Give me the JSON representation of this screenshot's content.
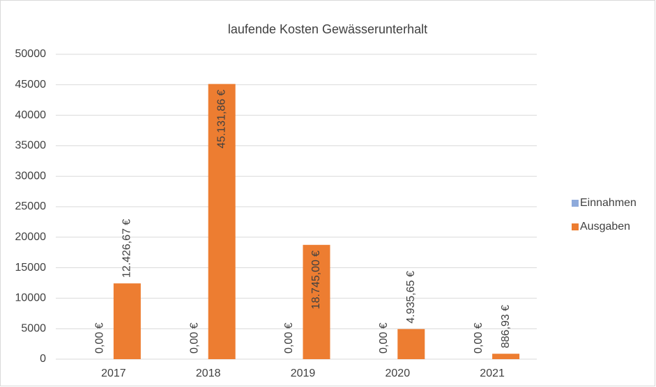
{
  "chart_data": {
    "type": "bar",
    "title": "laufende Kosten Gewässerunterhalt",
    "categories": [
      "2017",
      "2018",
      "2019",
      "2020",
      "2021"
    ],
    "series": [
      {
        "name": "Einnahmen",
        "color": "#8eaadb",
        "values": [
          0,
          0,
          0,
          0,
          0
        ],
        "value_labels": [
          "0,00 €",
          "0,00 €",
          "0,00 €",
          "0,00 €",
          "0,00 €"
        ]
      },
      {
        "name": "Ausgaben",
        "color": "#ed7d31",
        "values": [
          12426.67,
          45131.86,
          18745.0,
          4935.65,
          886.93
        ],
        "value_labels": [
          "12.426,67 €",
          "45.131,86 €",
          "18.745,00 €",
          "4.935,65 €",
          "886,93 €"
        ]
      }
    ],
    "ylim": [
      0,
      50000
    ],
    "yticks": [
      0,
      5000,
      10000,
      15000,
      20000,
      25000,
      30000,
      35000,
      40000,
      45000,
      50000
    ],
    "grid": true,
    "legend": "right"
  }
}
